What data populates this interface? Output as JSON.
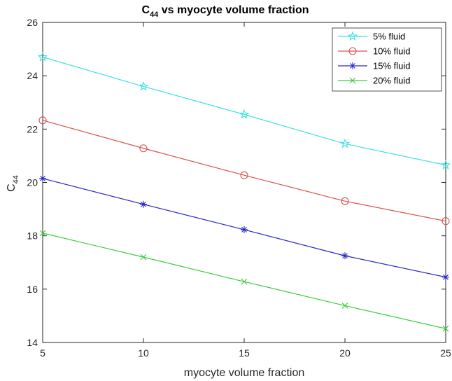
{
  "chart_data": {
    "type": "line",
    "title": {
      "main": "C",
      "sub": "44",
      "rest": " vs myocyte volume fraction"
    },
    "xlabel": "myocyte volume fraction",
    "ylabel": {
      "main": "C",
      "sub": "44"
    },
    "xlim": [
      5,
      25
    ],
    "ylim": [
      14,
      26
    ],
    "xticks": [
      5,
      10,
      15,
      20,
      25
    ],
    "yticks": [
      14,
      16,
      18,
      20,
      22,
      24,
      26
    ],
    "grid": false,
    "legend_position": "top-right",
    "x": [
      5,
      10,
      15,
      20,
      25
    ],
    "series": [
      {
        "name": "5% fluid",
        "marker": "star",
        "color": "#3fe0e0",
        "values": [
          24.7,
          23.6,
          22.55,
          21.45,
          20.65
        ]
      },
      {
        "name": "10% fluid",
        "marker": "circle",
        "color": "#d9534f",
        "values": [
          22.33,
          21.28,
          20.27,
          19.3,
          18.55
        ]
      },
      {
        "name": "15% fluid",
        "marker": "asterisk",
        "color": "#2828c8",
        "values": [
          20.15,
          19.18,
          18.23,
          17.25,
          16.45
        ]
      },
      {
        "name": "20% fluid",
        "marker": "x",
        "color": "#3ccc3c",
        "values": [
          18.1,
          17.2,
          16.28,
          15.38,
          14.52
        ]
      }
    ]
  }
}
